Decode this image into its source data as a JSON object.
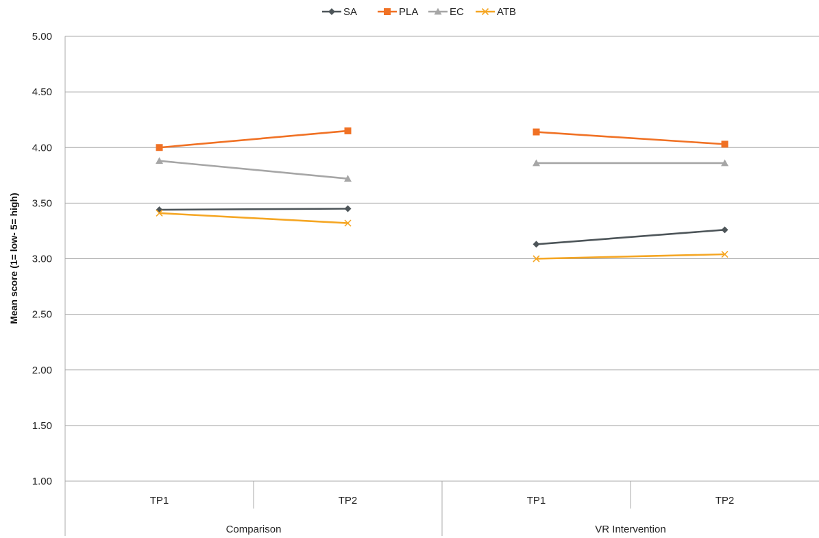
{
  "chart_data": {
    "type": "line",
    "ylabel": "Mean score (1= low- 5= high)",
    "ylim": [
      1,
      5
    ],
    "yticks": [
      "1.00",
      "1.50",
      "2.00",
      "2.50",
      "3.00",
      "3.50",
      "4.00",
      "4.50",
      "5.00"
    ],
    "grid": true,
    "legend_position": "top-center",
    "groups": [
      {
        "label": "Comparison",
        "categories": [
          "TP1",
          "TP2"
        ]
      },
      {
        "label": "VR Intervention",
        "categories": [
          "TP1",
          "TP2"
        ]
      }
    ],
    "series": [
      {
        "name": "SA",
        "color": "#4d5559",
        "marker": "diamond",
        "values": [
          [
            3.44,
            3.45
          ],
          [
            3.13,
            3.26
          ]
        ]
      },
      {
        "name": "PLA",
        "color": "#f07124",
        "marker": "square",
        "values": [
          [
            4.0,
            4.15
          ],
          [
            4.14,
            4.03
          ]
        ]
      },
      {
        "name": "EC",
        "color": "#a6a6a6",
        "marker": "triangle",
        "values": [
          [
            3.88,
            3.72
          ],
          [
            3.86,
            3.86
          ]
        ]
      },
      {
        "name": "ATB",
        "color": "#f5a623",
        "marker": "x",
        "values": [
          [
            3.41,
            3.32
          ],
          [
            3.0,
            3.04
          ]
        ]
      }
    ]
  }
}
